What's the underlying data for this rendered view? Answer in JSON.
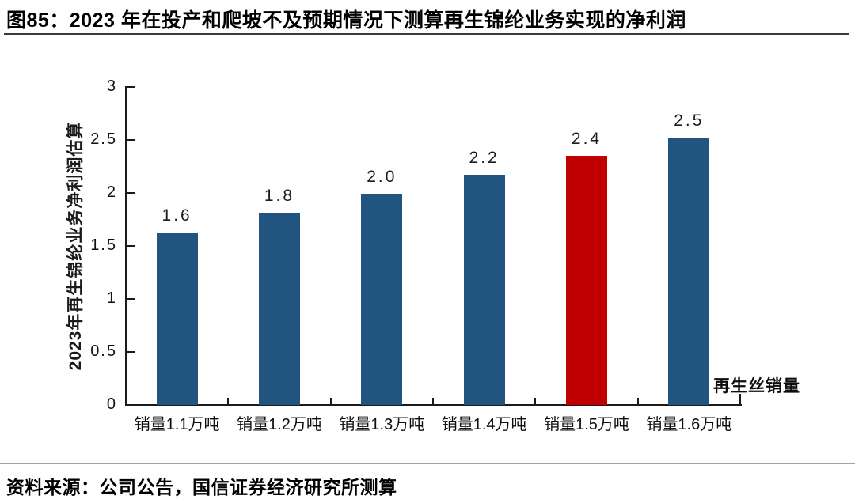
{
  "title": "图85：2023 年在投产和爬坡不及预期情况下测算再生锦纶业务实现的净利润",
  "source": "资料来源：公司公告，国信证券经济研究所测算",
  "chart_data": {
    "type": "bar",
    "categories": [
      "销量1.1万吨",
      "销量1.2万吨",
      "销量1.3万吨",
      "销量1.4万吨",
      "销量1.5万吨",
      "销量1.6万吨"
    ],
    "values": [
      1.63,
      1.81,
      1.99,
      2.17,
      2.35,
      2.52
    ],
    "data_labels": [
      "1.6",
      "1.8",
      "2.0",
      "2.2",
      "2.4",
      "2.5"
    ],
    "highlight_index": 4,
    "ylabel": "2023年再生锦纶业务净利润估算",
    "x_annotation": "再生丝销量",
    "ylim": [
      0,
      3
    ],
    "yticks": [
      0,
      0.5,
      1,
      1.5,
      2,
      2.5,
      3
    ],
    "ytick_labels": [
      "0",
      "0.5",
      "1",
      "1.5",
      "2",
      "2.5",
      "3"
    ],
    "grid": false,
    "legend": "none",
    "colors": {
      "bar": "#21547E",
      "highlight": "#C00000",
      "axis": "#1a1a1a"
    }
  }
}
